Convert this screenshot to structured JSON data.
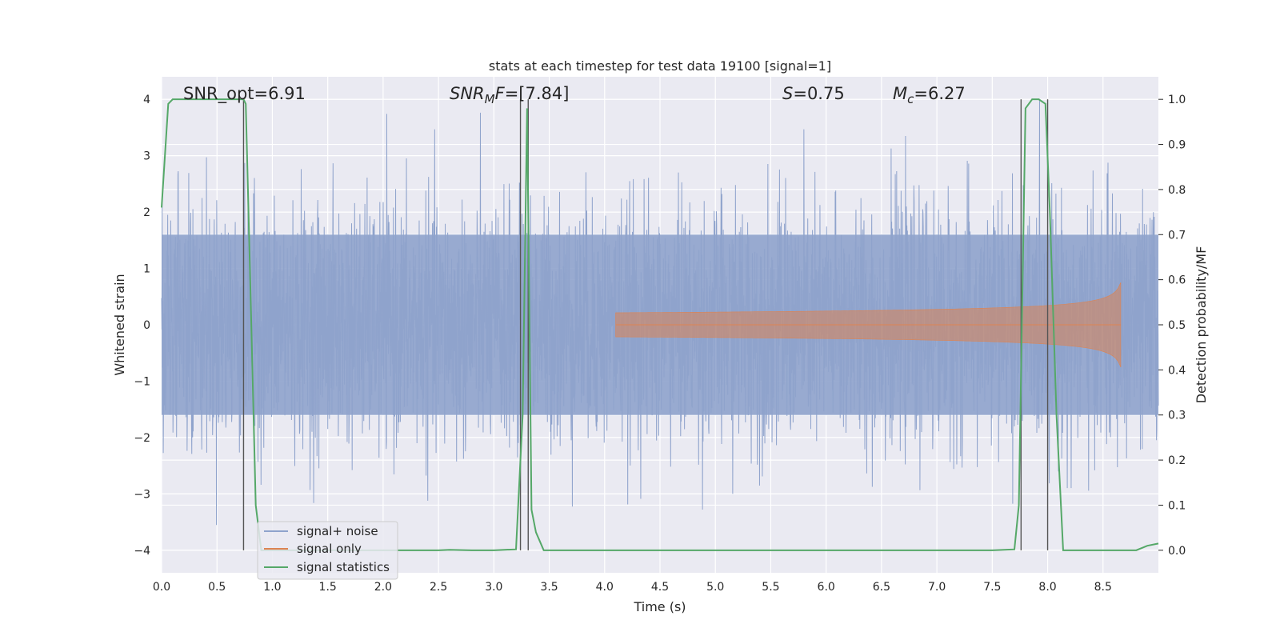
{
  "chart_data": {
    "type": "line",
    "title": "stats at each timestep for test data 19100 [signal=1]",
    "xlabel": "Time (s)",
    "ylabel_left": "Whitened strain",
    "ylabel_right": "Detection probability/MF",
    "xlim": [
      0.0,
      9.0
    ],
    "ylim_left": [
      -4.4,
      4.4
    ],
    "ylim_right": [
      -0.05,
      1.05
    ],
    "x_ticks": [
      "0.0",
      "0.5",
      "1.0",
      "1.5",
      "2.0",
      "2.5",
      "3.0",
      "3.5",
      "4.0",
      "4.5",
      "5.0",
      "5.5",
      "6.0",
      "6.5",
      "7.0",
      "7.5",
      "8.0",
      "8.5"
    ],
    "y_left_ticks": [
      "4",
      "3",
      "2",
      "1",
      "0",
      "−1",
      "−2",
      "−3",
      "−4"
    ],
    "y_right_ticks": [
      "1.0",
      "0.9",
      "0.8",
      "0.7",
      "0.6",
      "0.5",
      "0.4",
      "0.3",
      "0.2",
      "0.1",
      "0.0"
    ],
    "grid": true,
    "legend_position": "lower-left",
    "annotations": {
      "snr_opt": "SNR_opt=6.91",
      "snr_mf_italic": "SNR",
      "snr_mf_sub": "M",
      "snr_mf_rest": "F",
      "snr_mf_value": "=[7.84]",
      "s_label": "S",
      "s_value": "=0.75",
      "mc_label": "M",
      "mc_sub": "c",
      "mc_value": "=6.27"
    },
    "series": [
      {
        "name": "signal+ noise",
        "color": "#8fa3cc",
        "amplitude_typical": 1.6,
        "amplitude_peak": 4.0
      },
      {
        "name": "signal only",
        "color": "#dd8452",
        "start_time": 4.1,
        "end_time": 8.66,
        "peak_amplitude": 0.75
      },
      {
        "name": "signal statistics",
        "color": "#55a868",
        "x": [
          0.0,
          0.06,
          0.1,
          0.2,
          0.4,
          0.6,
          0.7,
          0.74,
          0.76,
          0.8,
          0.85,
          0.9,
          1.0,
          2.0,
          2.5,
          2.6,
          2.8,
          3.0,
          3.2,
          3.26,
          3.3,
          3.34,
          3.38,
          3.45,
          3.5,
          4.5,
          6.0,
          7.0,
          7.5,
          7.7,
          7.74,
          7.8,
          7.86,
          7.92,
          7.98,
          8.02,
          8.08,
          8.14,
          8.2,
          8.5,
          8.8,
          8.9,
          9.0
        ],
        "y": [
          0.76,
          0.99,
          1.0,
          1.0,
          1.0,
          1.0,
          1.0,
          1.0,
          0.99,
          0.6,
          0.1,
          0.0,
          0.0,
          0.0,
          0.0,
          0.001,
          0.0,
          0.0,
          0.002,
          0.3,
          0.98,
          0.09,
          0.04,
          0.0,
          0.0,
          0.0,
          0.0,
          0.0,
          0.0,
          0.002,
          0.1,
          0.98,
          1.0,
          1.0,
          0.99,
          0.75,
          0.3,
          0.0,
          0.0,
          0.0,
          0.0,
          0.01,
          0.015
        ]
      }
    ],
    "vertical_markers": [
      0.74,
      3.24,
      3.31,
      7.76,
      8.0
    ]
  }
}
